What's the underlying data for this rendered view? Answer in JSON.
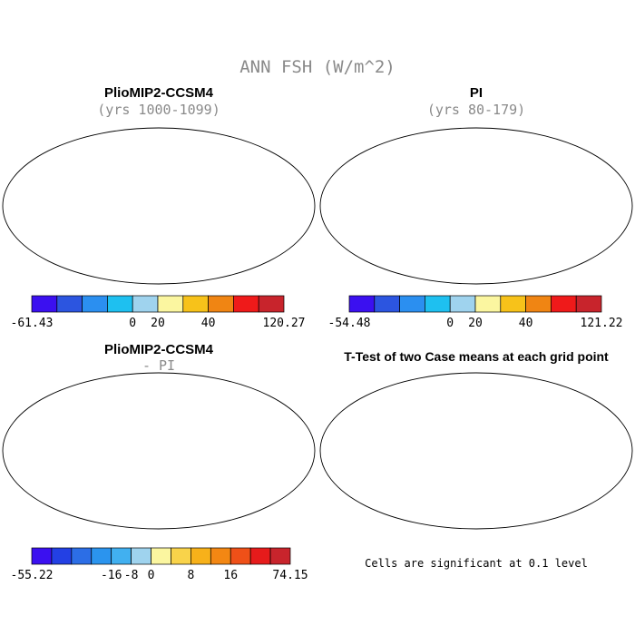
{
  "figure": {
    "title": "ANN FSH (W/m^2)"
  },
  "panels": [
    {
      "id": "plio",
      "title": "PlioMIP2-CCSM4",
      "subtitle": "(yrs 1000-1099)",
      "colorbar": {
        "colors": [
          "#3b10f0",
          "#2c55e0",
          "#2b8ff0",
          "#1ec0f0",
          "#9fd3ee",
          "#fbf6a0",
          "#f7c21a",
          "#f08513",
          "#ef1a1a",
          "#c8242c"
        ],
        "tick_labels": [
          "-61.43",
          "0",
          "20",
          "40",
          "120.27"
        ]
      }
    },
    {
      "id": "pi",
      "title": "PI",
      "subtitle": "(yrs 80-179)",
      "colorbar": {
        "colors": [
          "#3b10f0",
          "#2c55e0",
          "#2b8ff0",
          "#1ec0f0",
          "#9fd3ee",
          "#fbf6a0",
          "#f7c21a",
          "#f08513",
          "#ef1a1a",
          "#c8242c"
        ],
        "tick_labels": [
          "-54.48",
          "0",
          "20",
          "40",
          "121.22"
        ]
      }
    },
    {
      "id": "diff",
      "title": "PlioMIP2-CCSM4",
      "subtitle": "- PI",
      "colorbar": {
        "colors": [
          "#3b10f0",
          "#2340e4",
          "#2c6ee6",
          "#2b94ee",
          "#41b0f0",
          "#9fd3ee",
          "#fbf6a0",
          "#f9d34a",
          "#f7b11a",
          "#f38713",
          "#ef5018",
          "#e61b1b",
          "#c8242c"
        ],
        "tick_labels": [
          "-55.22",
          "-16",
          "-8",
          "0",
          "8",
          "16",
          "74.15"
        ]
      }
    },
    {
      "id": "ttest",
      "title": "T-Test of two Case means at each grid point",
      "note": "Cells are significant at 0.1 level",
      "fill_color": "#ee0000"
    }
  ]
}
